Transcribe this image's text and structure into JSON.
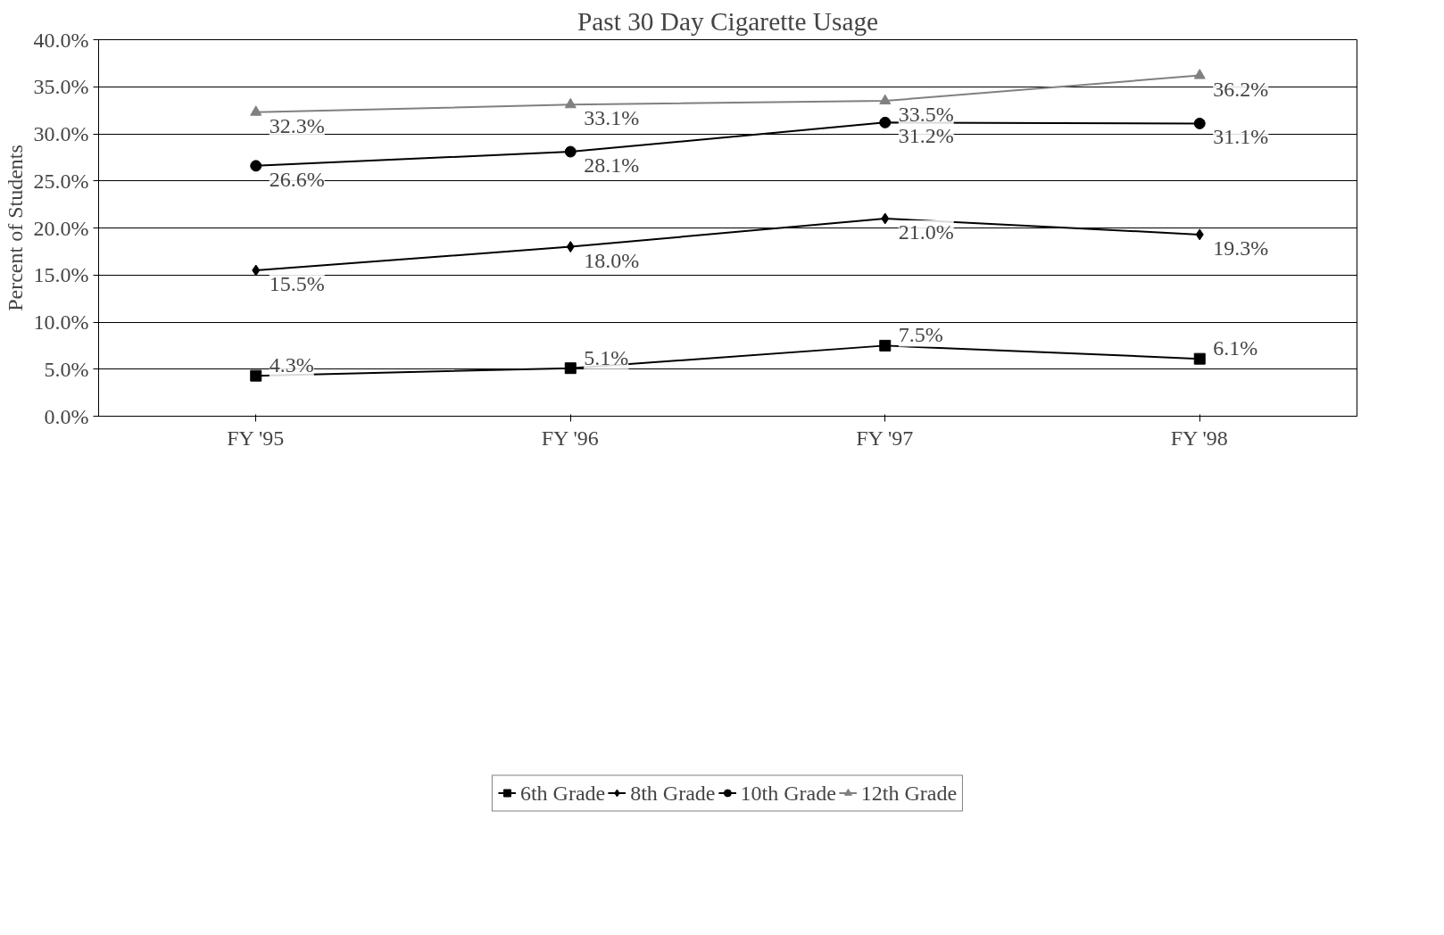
{
  "chart_data": {
    "type": "line",
    "title": "Past 30 Day Cigarette Usage",
    "ylabel": "Percent of Students",
    "categories": [
      "FY '95",
      "FY '96",
      "FY '97",
      "FY '98"
    ],
    "ylim": [
      0,
      40
    ],
    "yticks": [
      {
        "value": 0,
        "label": "0.0%"
      },
      {
        "value": 5,
        "label": "5.0%"
      },
      {
        "value": 10,
        "label": "10.0%"
      },
      {
        "value": 15,
        "label": "15.0%"
      },
      {
        "value": 20,
        "label": "20.0%"
      },
      {
        "value": 25,
        "label": "25.0%"
      },
      {
        "value": 30,
        "label": "30.0%"
      },
      {
        "value": 35,
        "label": "35.0%"
      },
      {
        "value": 40,
        "label": "40.0%"
      }
    ],
    "grid": "y",
    "legend": "bottom",
    "series": [
      {
        "name": "6th Grade",
        "color": "#000000",
        "marker": "square",
        "values": [
          4.3,
          5.1,
          7.5,
          6.1
        ],
        "value_labels": [
          "4.3%",
          "5.1%",
          "7.5%",
          "6.1%"
        ]
      },
      {
        "name": "8th Grade",
        "color": "#000000",
        "marker": "diamond",
        "values": [
          15.5,
          18.0,
          21.0,
          19.3
        ],
        "value_labels": [
          "15.5%",
          "18.0%",
          "21.0%",
          "19.3%"
        ]
      },
      {
        "name": "10th Grade",
        "color": "#000000",
        "marker": "circle",
        "values": [
          26.6,
          28.1,
          31.2,
          31.1
        ],
        "value_labels": [
          "26.6%",
          "28.1%",
          "31.2%",
          "31.1%"
        ]
      },
      {
        "name": "12th Grade",
        "color": "#808080",
        "marker": "triangle",
        "values": [
          32.3,
          33.1,
          33.5,
          36.2
        ],
        "value_labels": [
          "32.3%",
          "33.1%",
          "33.5%",
          "36.2%"
        ]
      }
    ]
  }
}
